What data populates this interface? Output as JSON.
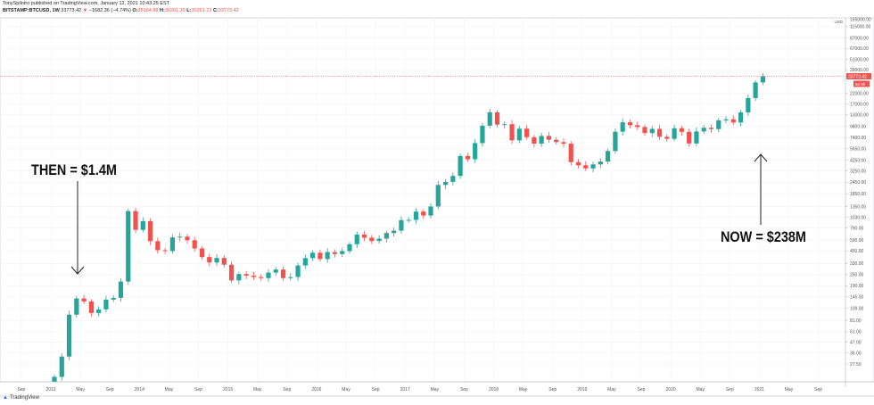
{
  "header": {
    "published": "TonySpilotro published on TradingView.com, January 12, 2021 10:43:25 EST",
    "symbol": "BITSTAMP:BTCUSD, 1W",
    "last": "33773.42",
    "change": "−1682.36 (−4.74%)",
    "o_label": "O:",
    "o": "35164.88",
    "h_label": "H:",
    "h": "36261.39",
    "l_label": "L:",
    "l": "30261.13",
    "c_label": "C:",
    "c": "33773.42"
  },
  "annotations": {
    "then": "THEN = $1.4M",
    "now": "NOW = $238M"
  },
  "footer": {
    "brand": "TradingView"
  },
  "colors": {
    "up": "#26a69a",
    "down": "#ef5350",
    "grid": "#f0f3fa",
    "axis": "#b2b5be"
  },
  "chart_data": {
    "type": "candlestick",
    "scale": "log",
    "currency": "USD",
    "ylim": [
      27.5,
      155000
    ],
    "grid": true,
    "y_ticks": [
      "155000.00",
      "115000.00",
      "87000.00",
      "67000.00",
      "51000.00",
      "39000.00",
      "22000.00",
      "17000.00",
      "13000.00",
      "9800.00",
      "7400.00",
      "5650.00",
      "4250.00",
      "3250.00",
      "2450.00",
      "1850.00",
      "1350.00",
      "1030.00",
      "790.00",
      "590.00",
      "450.00",
      "330.00",
      "250.00",
      "190.00",
      "145.00",
      "109.00",
      "81.00",
      "61.00",
      "47.00",
      "36.00",
      "27.50"
    ],
    "x_ticks": [
      "Sep",
      "2013",
      "May",
      "Sep",
      "2014",
      "May",
      "Sep",
      "2015",
      "May",
      "Sep",
      "2016",
      "May",
      "Sep",
      "2017",
      "May",
      "Sep",
      "2018",
      "May",
      "Sep",
      "2019",
      "May",
      "Sep",
      "2020",
      "May",
      "Sep",
      "2021",
      "May",
      "Sep"
    ],
    "last_price": "33773.42",
    "countdown": "5d 9h",
    "start": "2013-01",
    "closes": [
      20,
      33,
      93,
      139,
      129,
      97,
      106,
      135,
      141,
      211,
      1205,
      757,
      940,
      573,
      458,
      448,
      628,
      640,
      586,
      478,
      387,
      338,
      378,
      320,
      217,
      254,
      244,
      236,
      230,
      263,
      284,
      230,
      236,
      314,
      377,
      430,
      368,
      437,
      416,
      448,
      531,
      673,
      624,
      575,
      609,
      700,
      742,
      963,
      970,
      1190,
      1080,
      1350,
      2300,
      2480,
      2875,
      4700,
      4340,
      6470,
      9950,
      13860,
      10220,
      10330,
      6930,
      9240,
      7490,
      6390,
      7730,
      7030,
      6630,
      6370,
      4040,
      3740,
      3460,
      3820,
      4100,
      5320,
      8570,
      10820,
      10080,
      9630,
      8290,
      9200,
      7560,
      7190,
      9350,
      8540,
      6410,
      8630,
      9450,
      9140,
      11350,
      11650,
      10780,
      13800,
      19700,
      28990,
      33773
    ]
  }
}
